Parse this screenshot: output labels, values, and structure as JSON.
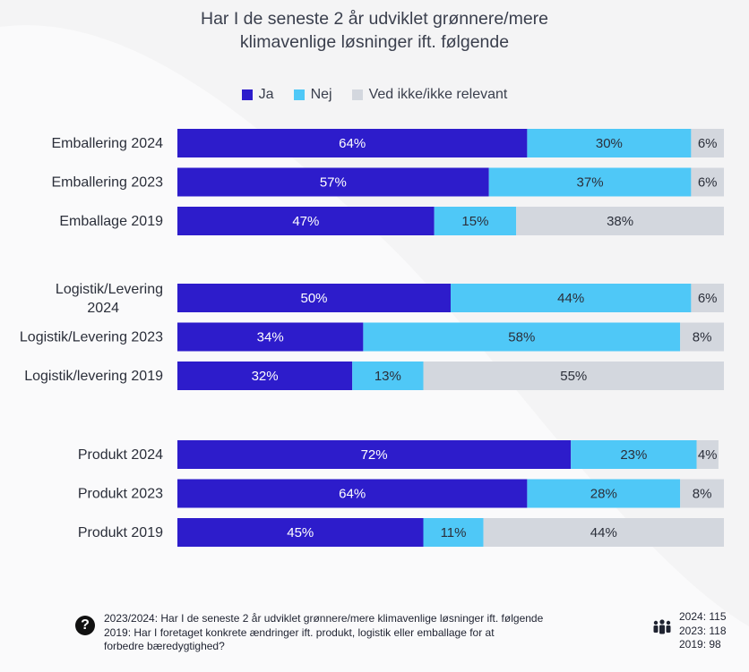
{
  "chart_data": {
    "type": "bar",
    "orientation": "horizontal",
    "stacked": true,
    "title_lines": [
      "Har I de seneste 2 år udviklet grønnere/mere",
      "klimavenlige løsninger ift. følgende"
    ],
    "categories": [
      "Emballering 2024",
      "Emballering 2023",
      "Emballage 2019",
      "Logistik/Levering 2024",
      "Logistik/Levering 2023",
      "Logistik/levering 2019",
      "Produkt 2024",
      "Produkt 2023",
      "Produkt 2019"
    ],
    "series": [
      {
        "name": "Ja",
        "color": "#2d1ccb",
        "values": [
          64,
          57,
          47,
          50,
          34,
          32,
          72,
          64,
          45
        ]
      },
      {
        "name": "Nej",
        "color": "#4fc8f7",
        "values": [
          30,
          37,
          15,
          44,
          58,
          13,
          23,
          28,
          11
        ]
      },
      {
        "name": "Ved ikke/ikke relevant",
        "color": "#d3d7de",
        "values": [
          6,
          6,
          38,
          6,
          8,
          55,
          4,
          8,
          44
        ]
      }
    ],
    "label_suffix": "%",
    "groups": [
      [
        0,
        1,
        2
      ],
      [
        3,
        4,
        5
      ],
      [
        6,
        7,
        8
      ]
    ],
    "legend_position": "top",
    "grid": false,
    "xlim": [
      0,
      100
    ]
  },
  "footer": {
    "question_lines": [
      "2023/2024: Har I de seneste 2 år udviklet grønnere/mere klimavenlige løsninger ift. følgende",
      "2019: Har I foretaget konkrete ændringer ift. produkt, logistik eller emballage for at",
      "forbedre bæredygtighed?"
    ],
    "question_icon": "question-icon",
    "question_icon_glyph": "?",
    "count_icon": "people-icon",
    "counts": [
      "2024: 115",
      "2023: 118",
      "2019: 98"
    ]
  }
}
